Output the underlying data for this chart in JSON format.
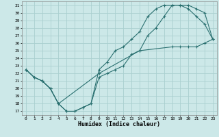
{
  "xlabel": "Humidex (Indice chaleur)",
  "bg_color": "#cce8e8",
  "grid_color": "#aad0d0",
  "line_color": "#2a7070",
  "xlim": [
    -0.5,
    23.5
  ],
  "ylim": [
    16.5,
    31.5
  ],
  "xticks": [
    0,
    1,
    2,
    3,
    4,
    5,
    6,
    7,
    8,
    9,
    10,
    11,
    12,
    13,
    14,
    15,
    16,
    17,
    18,
    19,
    20,
    21,
    22,
    23
  ],
  "yticks": [
    17,
    18,
    19,
    20,
    21,
    22,
    23,
    24,
    25,
    26,
    27,
    28,
    29,
    30,
    31
  ],
  "line1_x": [
    0,
    1,
    2,
    3,
    4,
    5,
    6,
    7,
    8,
    9,
    10,
    11,
    12,
    13,
    14,
    15,
    16,
    17,
    18,
    19,
    20,
    21,
    22,
    23
  ],
  "line1_y": [
    22.5,
    21.5,
    21.0,
    20.0,
    18.0,
    17.0,
    17.0,
    17.5,
    18.0,
    21.5,
    22.0,
    22.5,
    23.0,
    24.5,
    25.0,
    27.0,
    28.0,
    29.5,
    31.0,
    31.0,
    31.0,
    30.5,
    30.0,
    26.5
  ],
  "line2_x": [
    0,
    1,
    2,
    3,
    4,
    5,
    6,
    7,
    8,
    9,
    10,
    11,
    12,
    13,
    14,
    15,
    16,
    17,
    18,
    19,
    20,
    21,
    22,
    23
  ],
  "line2_y": [
    22.5,
    21.5,
    21.0,
    20.0,
    18.0,
    17.0,
    17.0,
    17.5,
    18.0,
    22.5,
    23.5,
    25.0,
    25.5,
    26.5,
    27.5,
    29.5,
    30.5,
    31.0,
    31.0,
    31.0,
    30.5,
    29.5,
    28.5,
    26.5
  ],
  "line3_x": [
    0,
    1,
    2,
    3,
    4,
    9,
    14,
    18,
    19,
    20,
    21,
    22,
    23
  ],
  "line3_y": [
    22.5,
    21.5,
    21.0,
    20.0,
    18.0,
    22.0,
    25.0,
    25.5,
    25.5,
    25.5,
    25.5,
    26.0,
    26.5
  ]
}
